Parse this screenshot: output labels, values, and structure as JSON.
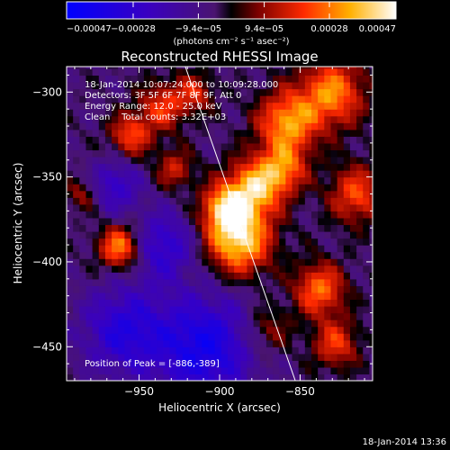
{
  "chart_data": {
    "type": "heatmap",
    "title": "Reconstructed RHESSI Image",
    "xlabel": "Heliocentric X (arcsec)",
    "ylabel": "Heliocentric Y (arcsec)",
    "xlim": [
      -995,
      -805
    ],
    "ylim": [
      -470,
      -285
    ],
    "x_ticks": [
      -950,
      -900,
      -850
    ],
    "y_ticks": [
      -300,
      -350,
      -400,
      -450
    ],
    "x_tick_labels": [
      "−950",
      "−900",
      "−850"
    ],
    "y_tick_labels": [
      "−300",
      "−350",
      "−400",
      "−450"
    ],
    "colorbar": {
      "range": [
        -0.00047,
        0.00047
      ],
      "tick_values": [
        -0.00047,
        -0.00028,
        -9.4e-05,
        9.4e-05,
        0.00028,
        0.00047
      ],
      "tick_labels": [
        "−0.00047",
        "−0.00028",
        "−9.4e−05",
        "9.4e−05",
        "0.00028",
        "0.00047"
      ],
      "unit_label": "(photons cm⁻² s⁻¹ asec⁻²)"
    },
    "annotations": [
      "18-Jan-2014 10:07:24.000 to 10:09:28.000",
      "Detectors: 3F 5F 6F 7F 8F 9F, Att 0",
      "Energy Range: 12.0 - 25.0 keV",
      "Clean    Total counts: 3.32E+03"
    ],
    "peak_label": "Position of Peak = [-886,-389]",
    "peak": [
      -886,
      -389
    ],
    "limb_line": {
      "x": [
        -925,
        -853
      ],
      "y": [
        -275,
        -470
      ]
    },
    "sources": [
      {
        "x": -888,
        "y": -387,
        "amp": 1.0,
        "s": 14
      },
      {
        "x": -878,
        "y": -356,
        "amp": 0.85,
        "s": 12
      },
      {
        "x": -897,
        "y": -368,
        "amp": 0.75,
        "s": 10
      },
      {
        "x": -858,
        "y": -318,
        "amp": 0.8,
        "s": 13
      },
      {
        "x": -830,
        "y": -300,
        "amp": 0.75,
        "s": 14
      },
      {
        "x": -815,
        "y": -360,
        "amp": 0.6,
        "s": 12
      },
      {
        "x": -860,
        "y": -345,
        "amp": 0.6,
        "s": 10
      },
      {
        "x": -962,
        "y": -391,
        "amp": 0.8,
        "s": 9
      },
      {
        "x": -955,
        "y": -325,
        "amp": 0.6,
        "s": 9
      },
      {
        "x": -935,
        "y": -308,
        "amp": 0.55,
        "s": 10
      },
      {
        "x": -928,
        "y": -345,
        "amp": 0.45,
        "s": 8
      },
      {
        "x": -915,
        "y": -300,
        "amp": 0.45,
        "s": 8
      },
      {
        "x": -838,
        "y": -416,
        "amp": 0.7,
        "s": 11
      },
      {
        "x": -828,
        "y": -448,
        "amp": 0.55,
        "s": 10
      },
      {
        "x": -870,
        "y": -440,
        "amp": 0.35,
        "s": 10
      },
      {
        "x": -985,
        "y": -360,
        "amp": 0.35,
        "s": 7
      },
      {
        "x": -910,
        "y": -450,
        "amp": -0.7,
        "s": 22
      },
      {
        "x": -960,
        "y": -440,
        "amp": -0.55,
        "s": 18
      },
      {
        "x": -935,
        "y": -390,
        "amp": -0.5,
        "s": 14
      },
      {
        "x": -965,
        "y": -355,
        "amp": -0.45,
        "s": 11
      }
    ]
  },
  "footer_timestamp": "18-Jan-2014 13:36"
}
